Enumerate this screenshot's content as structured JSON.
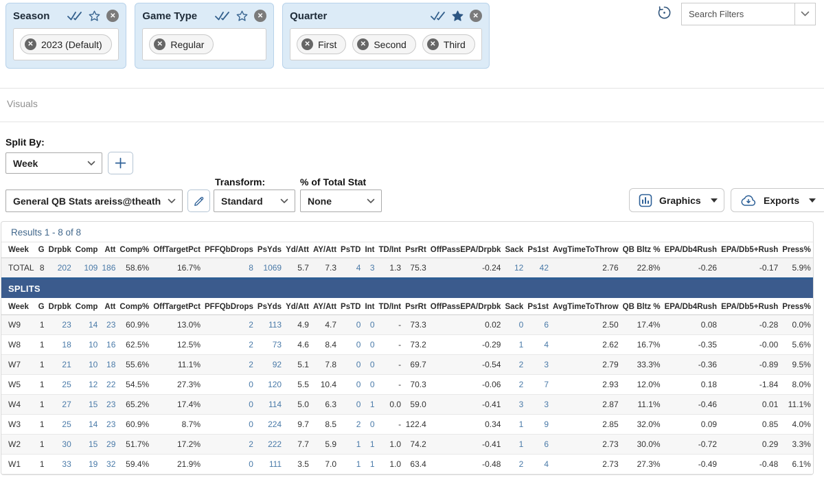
{
  "filters": {
    "cards": [
      {
        "label": "Season",
        "star": "outline",
        "chips": [
          "2023 (Default)"
        ]
      },
      {
        "label": "Game Type",
        "star": "outline",
        "chips": [
          "Regular"
        ]
      },
      {
        "label": "Quarter",
        "star": "filled",
        "chips": [
          "First",
          "Second",
          "Third"
        ]
      }
    ],
    "search_placeholder": "Search Filters"
  },
  "sections": {
    "visuals_label": "Visuals",
    "split_by_label": "Split By:",
    "split_value": "Week"
  },
  "toolbar": {
    "stat_preset": "General QB Stats areiss@theathleti...",
    "transform_label": "Transform:",
    "transform_value": "Standard",
    "pct_total_label": "% of Total Stat",
    "pct_total_value": "None",
    "graphics_label": "Graphics",
    "exports_label": "Exports"
  },
  "icons": {
    "select_all": "double-check",
    "favorite": "star",
    "remove_filter": "circle-x",
    "chip_remove": "circle-x",
    "history": "restore-clock-arrow",
    "dropdown": "chevron-down",
    "add_split": "plus",
    "edit_stat": "pencil",
    "graphics": "bar-chart-square",
    "exports": "cloud-download",
    "menu_caret": "caret-down"
  },
  "colors": {
    "card_bg": "#dcebf7",
    "card_border": "#b7d2ea",
    "accent_blue": "#2d6097",
    "splits_bar": "#3b5b8d",
    "total_border": "#2e5e94",
    "link": "#4a7aa8",
    "stripe": "#f7f7f7"
  },
  "table": {
    "results_label": "Results 1 - 8 of 8",
    "splits_label": "SPLITS",
    "headers": [
      "Week",
      "G",
      "Drpbk",
      "Comp",
      "Att",
      "Comp%",
      "OffTargetPct",
      "PFFQbDrops",
      "PsYds",
      "Yd/Att",
      "AY/Att",
      "PsTD",
      "Int",
      "TD/Int",
      "PsrRt",
      "OffPassEPA/Drpbk",
      "Sack",
      "Ps1st",
      "AvgTimeToThrow",
      "QB Bltz %",
      "EPA/Db4Rush",
      "EPA/Db5+Rush",
      "Press%"
    ],
    "link_columns": [
      2,
      3,
      4,
      7,
      8,
      11,
      12,
      16,
      17
    ],
    "total_row": [
      "TOTAL",
      "8",
      "202",
      "109",
      "186",
      "58.6%",
      "16.7%",
      "8",
      "1069",
      "5.7",
      "7.3",
      "4",
      "3",
      "1.3",
      "75.3",
      "-0.24",
      "12",
      "42",
      "2.76",
      "22.8%",
      "-0.26",
      "-0.17",
      "5.9%"
    ],
    "rows": [
      [
        "W9",
        "1",
        "23",
        "14",
        "23",
        "60.9%",
        "13.0%",
        "2",
        "113",
        "4.9",
        "4.7",
        "0",
        "0",
        "-",
        "73.3",
        "0.02",
        "0",
        "6",
        "2.50",
        "17.4%",
        "0.08",
        "-0.28",
        "0.0%"
      ],
      [
        "W8",
        "1",
        "18",
        "10",
        "16",
        "62.5%",
        "12.5%",
        "2",
        "73",
        "4.6",
        "8.4",
        "0",
        "0",
        "-",
        "73.2",
        "-0.29",
        "1",
        "4",
        "2.62",
        "16.7%",
        "-0.35",
        "-0.00",
        "5.6%"
      ],
      [
        "W7",
        "1",
        "21",
        "10",
        "18",
        "55.6%",
        "11.1%",
        "2",
        "92",
        "5.1",
        "7.8",
        "0",
        "0",
        "-",
        "69.7",
        "-0.54",
        "2",
        "3",
        "2.79",
        "33.3%",
        "-0.36",
        "-0.89",
        "9.5%"
      ],
      [
        "W5",
        "1",
        "25",
        "12",
        "22",
        "54.5%",
        "27.3%",
        "0",
        "120",
        "5.5",
        "10.4",
        "0",
        "0",
        "-",
        "70.3",
        "-0.06",
        "2",
        "7",
        "2.93",
        "12.0%",
        "0.18",
        "-1.84",
        "8.0%"
      ],
      [
        "W4",
        "1",
        "27",
        "15",
        "23",
        "65.2%",
        "17.4%",
        "0",
        "114",
        "5.0",
        "6.3",
        "0",
        "1",
        "0.0",
        "59.0",
        "-0.41",
        "3",
        "3",
        "2.87",
        "11.1%",
        "-0.46",
        "0.01",
        "11.1%"
      ],
      [
        "W3",
        "1",
        "25",
        "14",
        "23",
        "60.9%",
        "8.7%",
        "0",
        "224",
        "9.7",
        "8.5",
        "2",
        "0",
        "-",
        "122.4",
        "0.34",
        "1",
        "9",
        "2.85",
        "32.0%",
        "0.09",
        "0.85",
        "4.0%"
      ],
      [
        "W2",
        "1",
        "30",
        "15",
        "29",
        "51.7%",
        "17.2%",
        "2",
        "222",
        "7.7",
        "5.9",
        "1",
        "1",
        "1.0",
        "74.2",
        "-0.41",
        "1",
        "6",
        "2.73",
        "30.0%",
        "-0.72",
        "0.29",
        "3.3%"
      ],
      [
        "W1",
        "1",
        "33",
        "19",
        "32",
        "59.4%",
        "21.9%",
        "0",
        "111",
        "3.5",
        "7.0",
        "1",
        "1",
        "1.0",
        "63.4",
        "-0.48",
        "2",
        "4",
        "2.73",
        "27.3%",
        "-0.49",
        "-0.48",
        "6.1%"
      ]
    ]
  }
}
